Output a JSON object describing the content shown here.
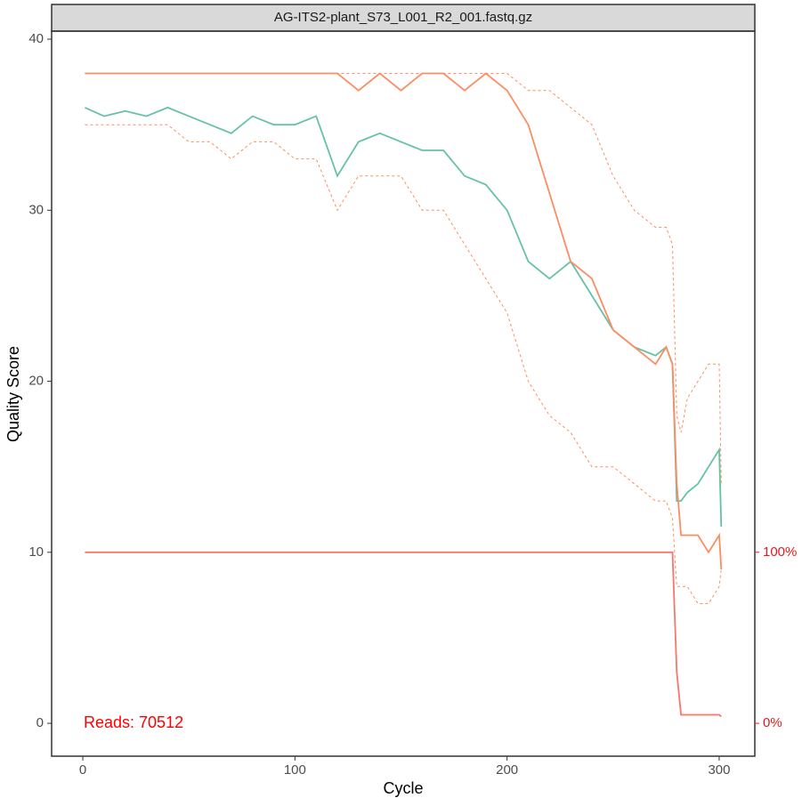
{
  "chart_data": {
    "type": "line",
    "title": "AG-ITS2-plant_S73_L001_R2_001.fastq.gz",
    "x_label": "Cycle",
    "y_label": "Quality Score",
    "annotation": "Reads:  70512",
    "x": [
      1,
      10,
      20,
      30,
      40,
      50,
      60,
      70,
      80,
      90,
      100,
      110,
      120,
      130,
      140,
      150,
      160,
      170,
      180,
      190,
      200,
      210,
      220,
      230,
      240,
      250,
      260,
      270,
      275,
      278,
      280,
      282,
      285,
      290,
      295,
      300,
      301
    ],
    "series": [
      {
        "color": "#66c2a5",
        "dashed": false,
        "values": [
          36,
          35.5,
          35.8,
          35.5,
          36,
          35.5,
          35,
          34.5,
          35.5,
          35,
          35,
          35.5,
          32,
          34,
          34.5,
          34,
          33.5,
          33.5,
          32,
          31.5,
          30,
          27,
          26,
          27,
          25,
          23,
          22,
          21.5,
          22,
          21,
          13,
          13,
          13.5,
          14,
          15,
          16,
          11.5
        ]
      },
      {
        "color": "#fc8d62",
        "dashed": false,
        "values": [
          38,
          38,
          38,
          38,
          38,
          38,
          38,
          38,
          38,
          38,
          38,
          38,
          38,
          37,
          38,
          37,
          38,
          38,
          37,
          38,
          37,
          35,
          31,
          27,
          26,
          23,
          22,
          21,
          22,
          21,
          14,
          11,
          11,
          11,
          10,
          11,
          9
        ]
      },
      {
        "color": "#fc8d62",
        "dashed": true,
        "values": [
          35,
          35,
          35,
          35,
          35,
          34,
          34,
          33,
          34,
          34,
          33,
          33,
          30,
          32,
          32,
          32,
          30,
          30,
          28,
          26,
          24,
          20,
          18,
          17,
          15,
          15,
          14,
          13,
          13,
          12,
          8,
          8,
          8,
          7,
          7,
          8,
          9
        ]
      },
      {
        "color": "#fc8d62",
        "dashed": true,
        "values": [
          38,
          38,
          38,
          38,
          38,
          38,
          38,
          38,
          38,
          38,
          38,
          38,
          38,
          38,
          38,
          38,
          38,
          38,
          38,
          38,
          38,
          37,
          37,
          36,
          35,
          32,
          30,
          29,
          29,
          28,
          18,
          17,
          19,
          20,
          21,
          21,
          14
        ]
      },
      {
        "color": "#f8766d",
        "dashed": false,
        "axis": "y2",
        "values": [
          100,
          100,
          100,
          100,
          100,
          100,
          100,
          100,
          100,
          100,
          100,
          100,
          100,
          100,
          100,
          100,
          100,
          100,
          100,
          100,
          100,
          100,
          100,
          100,
          100,
          100,
          100,
          100,
          100,
          100,
          30,
          5,
          5,
          5,
          5,
          5,
          4
        ]
      }
    ],
    "xlim": [
      -14.7,
      316.8
    ],
    "xticks": [
      0,
      100,
      200,
      300
    ],
    "ylim": [
      -1.92,
      40.47
    ],
    "yticks": [
      0,
      10,
      20,
      30,
      40
    ],
    "y2lim": [
      -19.2,
      404.7
    ],
    "y2ticks": [
      {
        "value": 0,
        "label": "0%"
      },
      {
        "value": 100,
        "label": "100%"
      }
    ],
    "y2_color": "#e31a1c",
    "grid": false
  }
}
